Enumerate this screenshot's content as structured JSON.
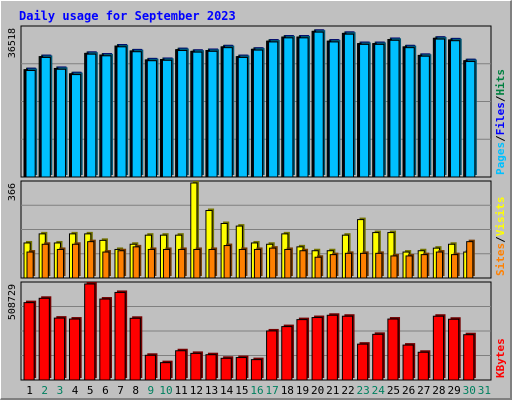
{
  "title": "Daily usage for September 2023",
  "chart_data": [
    {
      "type": "bar",
      "panel": "top",
      "max_label": "36518",
      "ylim": [
        0,
        36518
      ],
      "legend": [
        {
          "text": "Pages",
          "color": "#00c0ff"
        },
        {
          "text": "/",
          "color": "#000000"
        },
        {
          "text": "Files",
          "color": "#0000ff"
        },
        {
          "text": "/",
          "color": "#000000"
        },
        {
          "text": "Hits",
          "color": "#008040"
        }
      ],
      "categories": [
        "1",
        "2",
        "3",
        "4",
        "5",
        "6",
        "7",
        "8",
        "9",
        "10",
        "11",
        "12",
        "13",
        "14",
        "15",
        "16",
        "17",
        "18",
        "19",
        "20",
        "21",
        "22",
        "23",
        "24",
        "25",
        "26",
        "27",
        "28",
        "29",
        "30",
        "31"
      ],
      "series": [
        {
          "name": "Hits",
          "color": "#008040",
          "values": [
            26300,
            29500,
            26600,
            25300,
            30300,
            29900,
            32100,
            30900,
            28700,
            28800,
            31200,
            30800,
            31000,
            31900,
            29500,
            31300,
            33300,
            34300,
            34300,
            35700,
            33300,
            35200,
            32700,
            32700,
            33700,
            31900,
            29800,
            34000,
            33600,
            28500,
            0
          ]
        },
        {
          "name": "Files",
          "color": "#0000ff",
          "values": [
            26300,
            29500,
            26600,
            25300,
            30300,
            29900,
            32100,
            30900,
            28700,
            28800,
            31200,
            30800,
            31000,
            31900,
            29500,
            31300,
            33300,
            34300,
            34300,
            35700,
            33300,
            35200,
            32700,
            32700,
            33700,
            31900,
            29800,
            34000,
            33600,
            28500,
            0
          ]
        },
        {
          "name": "Pages",
          "color": "#00c0ff",
          "values": [
            26100,
            29300,
            26400,
            25100,
            30100,
            29700,
            31900,
            30700,
            28500,
            28600,
            31000,
            30600,
            30800,
            31700,
            29300,
            31100,
            33100,
            34100,
            34100,
            35500,
            33100,
            35000,
            32500,
            32500,
            33500,
            31700,
            29600,
            33800,
            33400,
            28300,
            0
          ]
        }
      ]
    },
    {
      "type": "bar",
      "panel": "middle",
      "max_label": "366",
      "ylim": [
        0,
        366
      ],
      "legend": [
        {
          "text": "Sites",
          "color": "#ff8000"
        },
        {
          "text": "/",
          "color": "#000000"
        },
        {
          "text": "Visits",
          "color": "#ffff00"
        }
      ],
      "categories": [
        "1",
        "2",
        "3",
        "4",
        "5",
        "6",
        "7",
        "8",
        "9",
        "10",
        "11",
        "12",
        "13",
        "14",
        "15",
        "16",
        "17",
        "18",
        "19",
        "20",
        "21",
        "22",
        "23",
        "24",
        "25",
        "26",
        "27",
        "28",
        "29",
        "30",
        "31"
      ],
      "series": [
        {
          "name": "Visits",
          "color": "#ffff00",
          "values": [
            135,
            170,
            135,
            170,
            170,
            145,
            110,
            130,
            165,
            165,
            165,
            366,
            260,
            210,
            200,
            135,
            130,
            170,
            120,
            105,
            105,
            165,
            225,
            175,
            175,
            100,
            105,
            115,
            130,
            100,
            0
          ]
        },
        {
          "name": "Sites",
          "color": "#ff8000",
          "values": [
            100,
            130,
            110,
            130,
            140,
            100,
            105,
            120,
            110,
            110,
            110,
            110,
            110,
            125,
            110,
            110,
            115,
            110,
            105,
            80,
            90,
            95,
            95,
            95,
            85,
            85,
            90,
            100,
            90,
            140,
            0
          ]
        }
      ]
    },
    {
      "type": "bar",
      "panel": "bottom",
      "max_label": "508729",
      "ylim": [
        0,
        508729
      ],
      "legend": [
        {
          "text": "KBytes",
          "color": "#ff0000"
        }
      ],
      "categories": [
        "1",
        "2",
        "3",
        "4",
        "5",
        "6",
        "7",
        "8",
        "9",
        "10",
        "11",
        "12",
        "13",
        "14",
        "15",
        "16",
        "17",
        "18",
        "19",
        "20",
        "21",
        "22",
        "23",
        "24",
        "25",
        "26",
        "27",
        "28",
        "29",
        "30",
        "31"
      ],
      "series": [
        {
          "name": "KBytes",
          "color": "#ff0000",
          "values": [
            410000,
            433000,
            328000,
            323000,
            508729,
            429000,
            464000,
            327000,
            131000,
            92000,
            155000,
            141000,
            134000,
            115000,
            119000,
            108000,
            260000,
            283000,
            320000,
            331000,
            343000,
            338000,
            190000,
            242000,
            323000,
            185000,
            147000,
            338000,
            322000,
            240000,
            0
          ]
        }
      ]
    }
  ],
  "x_axis": {
    "labels": [
      "1",
      "2",
      "3",
      "4",
      "5",
      "6",
      "7",
      "8",
      "9",
      "10",
      "11",
      "12",
      "13",
      "14",
      "15",
      "16",
      "17",
      "18",
      "19",
      "20",
      "21",
      "22",
      "23",
      "24",
      "25",
      "26",
      "27",
      "28",
      "29",
      "30",
      "31"
    ],
    "weekend": [
      2,
      3,
      9,
      10,
      16,
      17,
      23,
      24,
      30,
      31
    ],
    "weekday_color": "#000000",
    "weekend_color": "#00805f"
  }
}
